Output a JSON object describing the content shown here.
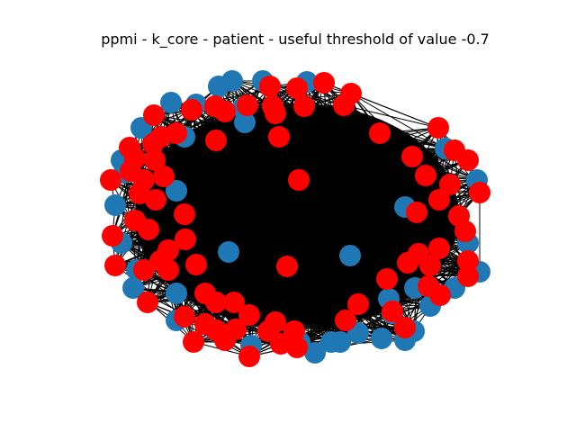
{
  "figure": {
    "title": "ppmi - k_core - patient - useful threshold of value -0.7"
  },
  "graph": {
    "colors": {
      "blue": "#1f77b4",
      "red": "#ff0000",
      "edge": "#000000",
      "background": "#ffffff"
    },
    "node_groups": [
      {
        "group": "blue",
        "color": "#1f77b4"
      },
      {
        "group": "red",
        "color": "#ff0000"
      }
    ]
  }
}
